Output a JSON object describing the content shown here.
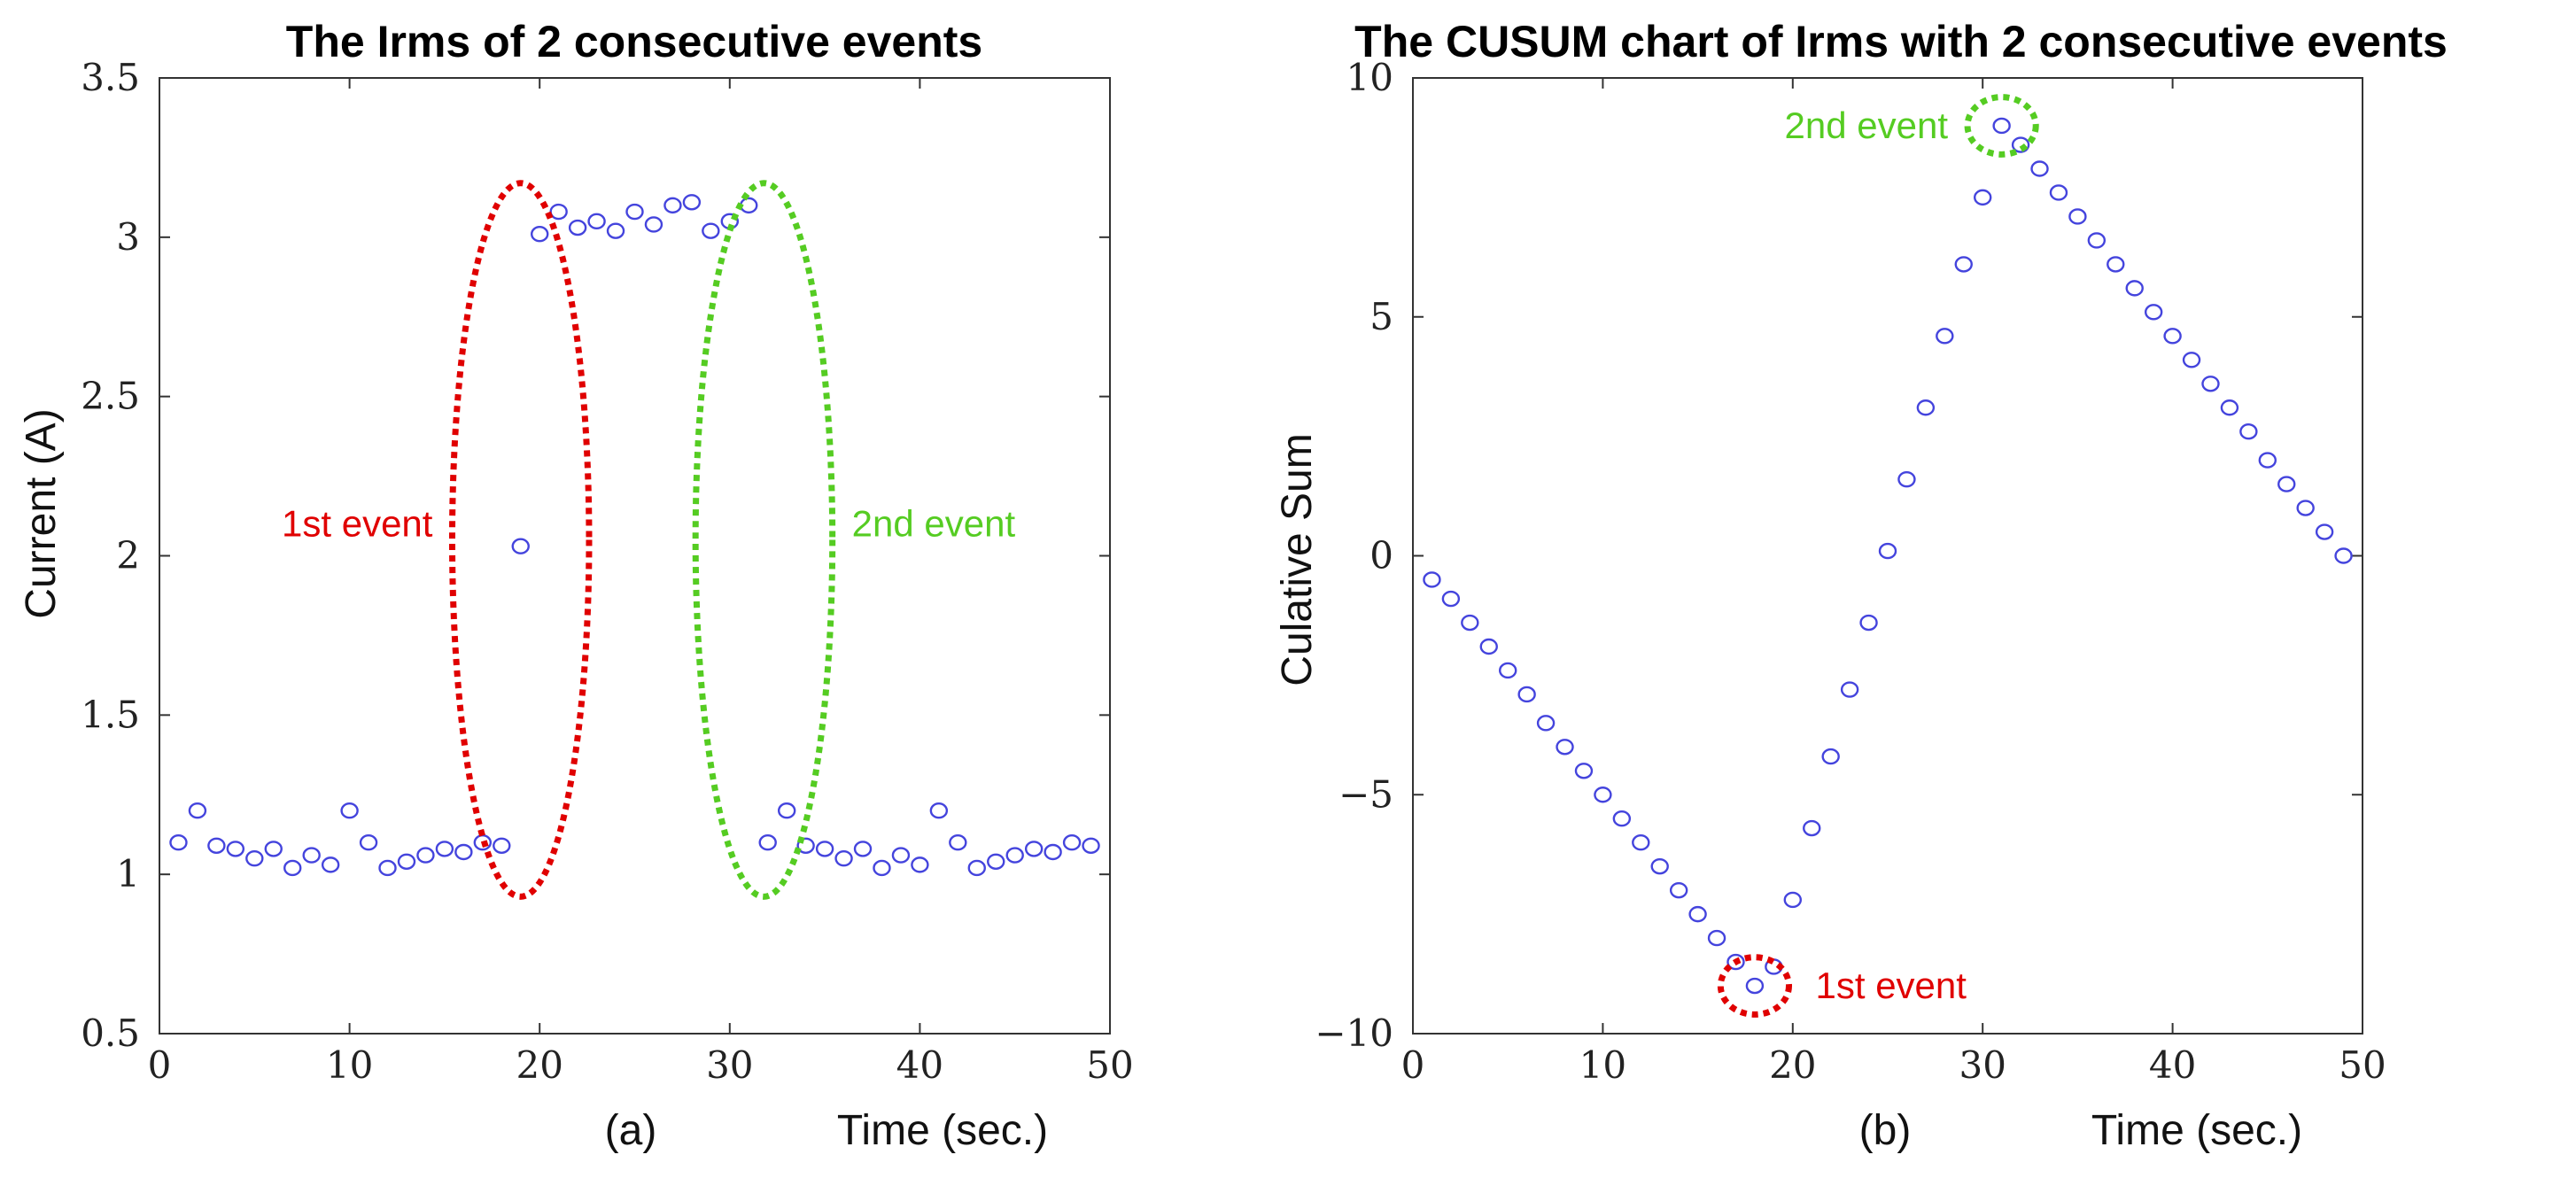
{
  "colors": {
    "marker": "#4444dd",
    "first_event": "#e00000",
    "second_event": "#55cc22"
  },
  "chart_data": [
    {
      "type": "scatter",
      "title": "The Irms of 2 consecutive events",
      "xlabel": "Time (sec.)",
      "ylabel": "Current (A)",
      "sublabel": "(a)",
      "xlim": [
        0,
        50
      ],
      "ylim": [
        0.5,
        3.5
      ],
      "xticks": [
        "0",
        "10",
        "20",
        "30",
        "40",
        "50"
      ],
      "yticks": [
        "0.5",
        "1",
        "1.5",
        "2",
        "2.5",
        "3",
        "3.5"
      ],
      "x": [
        1,
        2,
        3,
        4,
        5,
        6,
        7,
        8,
        9,
        10,
        11,
        12,
        13,
        14,
        15,
        16,
        17,
        18,
        19,
        20,
        21,
        22,
        23,
        24,
        25,
        26,
        27,
        28,
        29,
        30,
        31,
        32,
        33,
        34,
        35,
        36,
        37,
        38,
        39,
        40,
        41,
        42,
        43,
        44,
        45,
        46,
        47,
        48,
        49
      ],
      "y": [
        1.1,
        1.2,
        1.09,
        1.08,
        1.05,
        1.08,
        1.02,
        1.06,
        1.03,
        1.2,
        1.1,
        1.02,
        1.04,
        1.06,
        1.08,
        1.07,
        1.1,
        1.09,
        2.03,
        3.01,
        3.08,
        3.03,
        3.05,
        3.02,
        3.08,
        3.04,
        3.1,
        3.11,
        3.02,
        3.05,
        3.1,
        1.1,
        1.2,
        1.09,
        1.08,
        1.05,
        1.08,
        1.02,
        1.06,
        1.03,
        1.2,
        1.1,
        1.02,
        1.04,
        1.06,
        1.08,
        1.07,
        1.1,
        1.09
      ],
      "annotations": [
        {
          "label": "1st event",
          "color_key": "first_event",
          "x_center": 19,
          "x_radius": 3.6,
          "y_range": [
            0.93,
            3.17
          ]
        },
        {
          "label": "2nd event",
          "color_key": "second_event",
          "x_center": 31.8,
          "x_radius": 3.6,
          "y_range": [
            0.93,
            3.17
          ]
        }
      ]
    },
    {
      "type": "scatter",
      "title": "The CUSUM chart of Irms with 2 consecutive events",
      "xlabel": "Time (sec.)",
      "ylabel": "Culative Sum",
      "sublabel": "(b)",
      "xlim": [
        0,
        50
      ],
      "ylim": [
        -10,
        10
      ],
      "xticks": [
        "0",
        "10",
        "20",
        "30",
        "40",
        "50"
      ],
      "yticks": [
        "−10",
        "−5",
        "0",
        "5",
        "10"
      ],
      "x": [
        1,
        2,
        3,
        4,
        5,
        6,
        7,
        8,
        9,
        10,
        11,
        12,
        13,
        14,
        15,
        16,
        17,
        18,
        19,
        20,
        21,
        22,
        23,
        24,
        25,
        26,
        27,
        28,
        29,
        30,
        31,
        32,
        33,
        34,
        35,
        36,
        37,
        38,
        39,
        40,
        41,
        42,
        43,
        44,
        45,
        46,
        47,
        48,
        49
      ],
      "y": [
        -0.5,
        -0.9,
        -1.4,
        -1.9,
        -2.4,
        -2.9,
        -3.5,
        -4.0,
        -4.5,
        -5.0,
        -5.5,
        -6.0,
        -6.5,
        -7.0,
        -7.5,
        -8.0,
        -8.5,
        -9.0,
        -8.6,
        -7.2,
        -5.7,
        -4.2,
        -2.8,
        -1.4,
        0.1,
        1.6,
        3.1,
        4.6,
        6.1,
        7.5,
        9.0,
        8.6,
        8.1,
        7.6,
        7.1,
        6.6,
        6.1,
        5.6,
        5.1,
        4.6,
        4.1,
        3.6,
        3.1,
        2.6,
        2.0,
        1.5,
        1.0,
        0.5,
        0.0
      ],
      "annotations": [
        {
          "label": "1st event",
          "color_key": "first_event",
          "x_center": 18,
          "y_center": -9.0,
          "x_radius": 1.8,
          "y_radius": 0.6
        },
        {
          "label": "2nd event",
          "color_key": "second_event",
          "x_center": 31,
          "y_center": 9.0,
          "x_radius": 1.8,
          "y_radius": 0.6
        }
      ]
    }
  ]
}
